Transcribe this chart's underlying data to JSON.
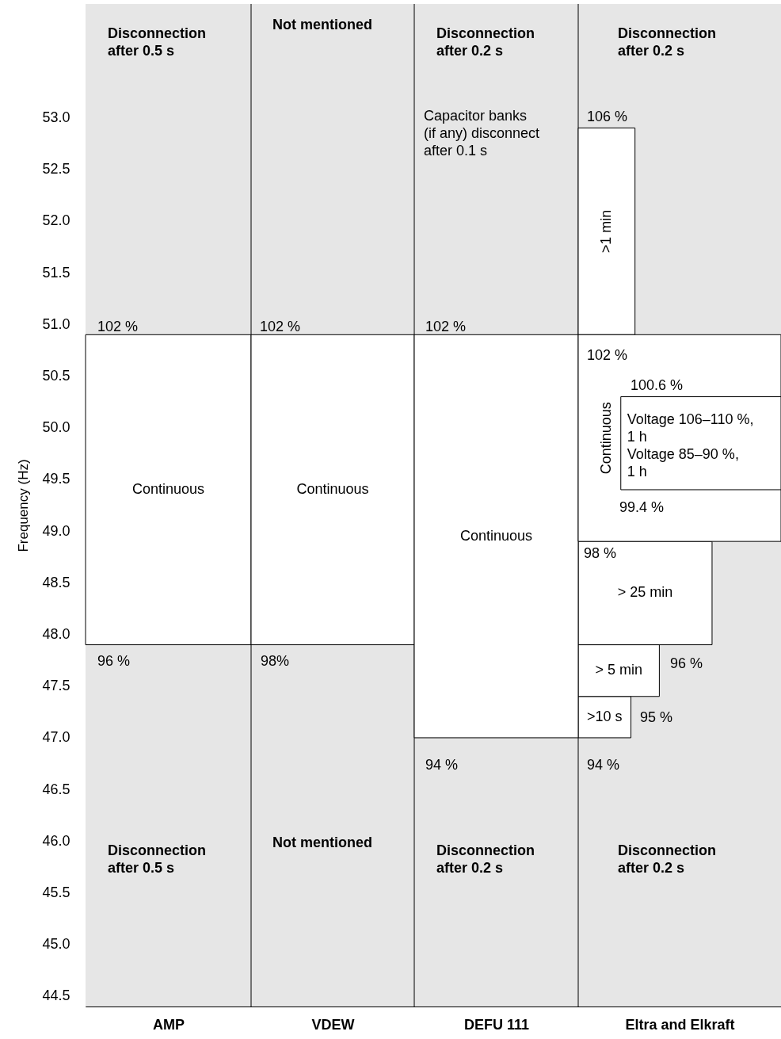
{
  "chart_data": {
    "type": "bar",
    "ylabel": "Frequency (Hz)",
    "categories": [
      "AMP",
      "VDEW",
      "DEFU 111",
      "Eltra and Elkraft"
    ],
    "ylim": [
      44.4,
      54.1
    ],
    "yticks": [
      44.5,
      {
        "value": 45,
        "label": "45.0"
      },
      45.5,
      {
        "value": 46,
        "label": "46.0"
      },
      46.5,
      {
        "value": 47,
        "label": "47.0"
      },
      47.5,
      {
        "value": 48,
        "label": "48.0"
      },
      48.5,
      {
        "value": 49,
        "label": "49.0"
      },
      49.5,
      {
        "value": 50,
        "label": "50.0"
      },
      50.5,
      {
        "value": 51,
        "label": "51.0"
      },
      51.5,
      {
        "value": 52,
        "label": "52.0"
      },
      52.5,
      {
        "value": 53,
        "label": "53.0"
      }
    ],
    "bands": [
      {
        "axis": "y",
        "from": 44.4,
        "to": 54.1,
        "color": "#e6e6e6"
      }
    ],
    "series": [
      {
        "color": "#ffffff",
        "base": [
          null,
          null,
          null,
          47.0
        ],
        "values": [
          null,
          null,
          null,
          0.4
        ],
        "value_labels": [
          null,
          null,
          null,
          ">10 s"
        ]
      },
      {
        "color": "#ffffff",
        "base": [
          null,
          null,
          null,
          50.9
        ],
        "values": [
          null,
          null,
          null,
          2.0
        ],
        "value_labels": [
          null,
          null,
          null,
          ">1 min"
        ]
      },
      {
        "color": "#ffffff",
        "base": [
          null,
          null,
          null,
          47.4
        ],
        "values": [
          null,
          null,
          null,
          0.5
        ],
        "value_labels": [
          null,
          null,
          null,
          "> 5 min"
        ]
      },
      {
        "color": "#ffffff",
        "base": [
          null,
          null,
          null,
          47.9
        ],
        "values": [
          null,
          null,
          null,
          1.0
        ],
        "value_labels": [
          null,
          null,
          null,
          "> 25 min"
        ]
      },
      {
        "color": "#ffffff",
        "base": [
          47.9,
          47.9,
          47.0,
          48.9
        ],
        "values": [
          3.0,
          3.0,
          3.9,
          2.0
        ],
        "value_labels": [
          "Continuous",
          "Continuous",
          "Continuous",
          "Continuous"
        ]
      },
      {
        "color": "#ffffff",
        "base": [
          null,
          null,
          null,
          49.4
        ],
        "values": [
          null,
          null,
          null,
          0.9
        ],
        "value_labels": [
          null,
          null,
          null,
          "Voltage 106–110 %,\n1 h\nVoltage 85–90 %,\n1 h"
        ]
      }
    ],
    "annotations": [
      "Disconnection\nafter 0.5 s",
      "Not mentioned",
      "Disconnection\nafter 0.2 s",
      "Disconnection\nafter 0.2 s",
      "Capacitor banks\n(if any) disconnect\nafter 0.1 s",
      "106 %",
      "102 %",
      "102 %",
      "102  %",
      "102 %",
      "100.6 %",
      "99.4 %",
      "98 %",
      "96 %",
      "98%",
      "96 %",
      "95 %",
      "94 %",
      "94 %",
      "Disconnection\nafter 0.5 s",
      "Not mentioned",
      "Disconnection\nafter 0.2 s",
      "Disconnection\nafter 0.2 s"
    ]
  }
}
